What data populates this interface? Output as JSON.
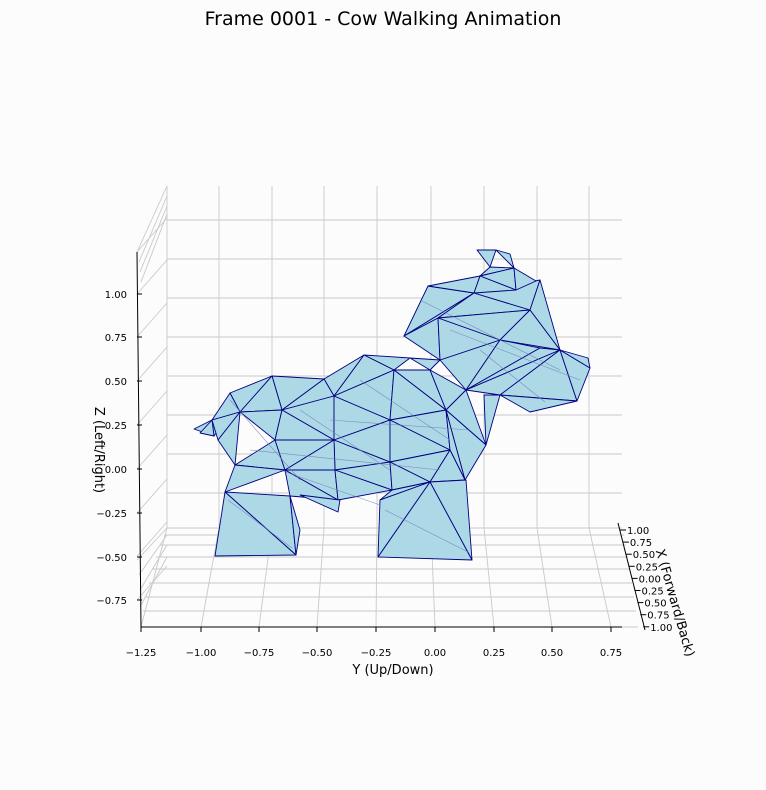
{
  "chart_data": {
    "type": "3d-mesh",
    "title": "Frame 0001 - Cow Walking Animation",
    "xlabel": "Y (Up/Down)",
    "ylabel": "Z (Left/Right)",
    "zlabel": "X (Forward/Back)",
    "x_ticks": [
      "−1.25",
      "−1.00",
      "−0.75",
      "−0.50",
      "−0.25",
      "0.00",
      "0.25",
      "0.50",
      "0.75"
    ],
    "z_ticks": [
      "−0.75",
      "−0.50",
      "−0.25",
      "0.00",
      "0.25",
      "0.50",
      "0.75",
      "1.00"
    ],
    "depth_ticks": [
      "1.00",
      "0.75",
      "0.50",
      "0.25",
      "0.00",
      "0.25",
      "0.50",
      "0.75",
      "1.00"
    ],
    "xlim": [
      -1.25,
      0.85
    ],
    "ylim": [
      -0.9,
      1.2
    ],
    "grid": true,
    "face_color": "#add8e6",
    "edge_color": "#000080",
    "grid_color": "#c9c9c9",
    "mesh": "low-poly cow, triangulated surface, front-facing view"
  }
}
